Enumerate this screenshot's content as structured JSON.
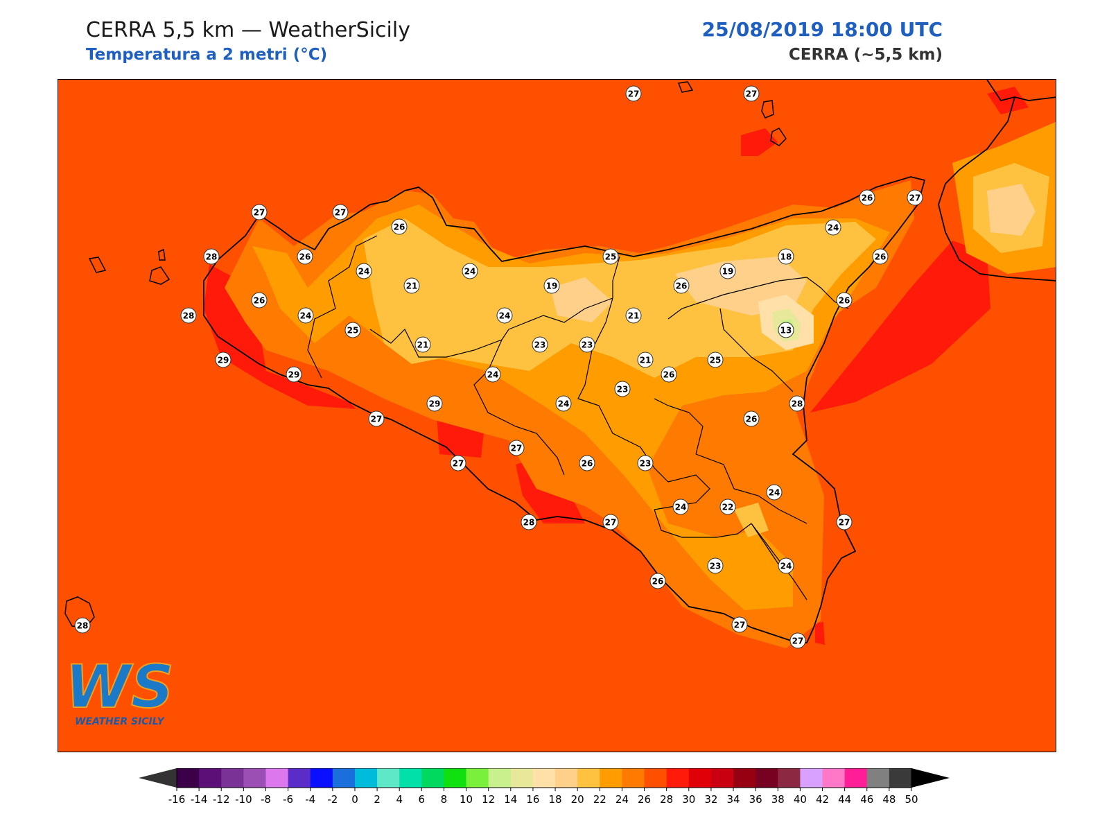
{
  "header": {
    "title": "CERRA 5,5 km — WeatherSicily",
    "subtitle": "Temperatura a 2 metri (°C)",
    "datetime": "25/08/2019 18:00 UTC",
    "model": "CERRA (~5,5 km)"
  },
  "logo": {
    "monogram": "WS",
    "wordmark": "WEATHER SICILY"
  },
  "colors": {
    "sea": "#ff5000",
    "t28": "#ff1a0a",
    "t26": "#ff7a00",
    "t24": "#ff9c00",
    "t22": "#ffc240",
    "t20": "#ffd08a",
    "t18": "#ffe0a8",
    "t14": "#e8e89a",
    "t12": "#c8f08c",
    "coast": "#000000",
    "label_fill": "#ffffff"
  },
  "station_values": [
    "27",
    "27",
    "27",
    "27",
    "26",
    "26",
    "27",
    "28",
    "26",
    "24",
    "24",
    "24",
    "26",
    "21",
    "24",
    "19",
    "25",
    "26",
    "18",
    "19",
    "28",
    "26",
    "24",
    "21",
    "21",
    "26",
    "25",
    "13",
    "29",
    "21",
    "23",
    "23",
    "24",
    "25",
    "29",
    "24",
    "23",
    "28",
    "27",
    "29",
    "26",
    "27",
    "27",
    "26",
    "23",
    "26",
    "24",
    "22",
    "28",
    "27",
    "27",
    "24",
    "23",
    "26",
    "24",
    "27",
    "28",
    "27"
  ],
  "colorbar": {
    "ticks": [
      "-16",
      "-14",
      "-12",
      "-10",
      "-8",
      "-6",
      "-4",
      "-2",
      "0",
      "2",
      "4",
      "6",
      "8",
      "10",
      "12",
      "14",
      "16",
      "18",
      "20",
      "22",
      "24",
      "26",
      "28",
      "30",
      "32",
      "34",
      "36",
      "38",
      "40",
      "42",
      "44",
      "46",
      "48",
      "50"
    ],
    "colors": [
      "#3b0048",
      "#5c0f78",
      "#7a3296",
      "#9b4fb5",
      "#dd77ee",
      "#5a2dc8",
      "#0a10ff",
      "#1a6fdd",
      "#00bcdc",
      "#5ee8c8",
      "#00e0a8",
      "#00d860",
      "#10e010",
      "#78f03c",
      "#c8f08c",
      "#e8e89a",
      "#ffe0a8",
      "#ffd08a",
      "#ffc240",
      "#ff9c00",
      "#ff7a00",
      "#ff5000",
      "#ff1a0a",
      "#e00008",
      "#c80010",
      "#960010",
      "#780020",
      "#8c2842",
      "#d8a0ff",
      "#ff78c8",
      "#ff1e96",
      "#808080",
      "#3a3a3a"
    ],
    "under": "#333333",
    "over": "#000000"
  }
}
